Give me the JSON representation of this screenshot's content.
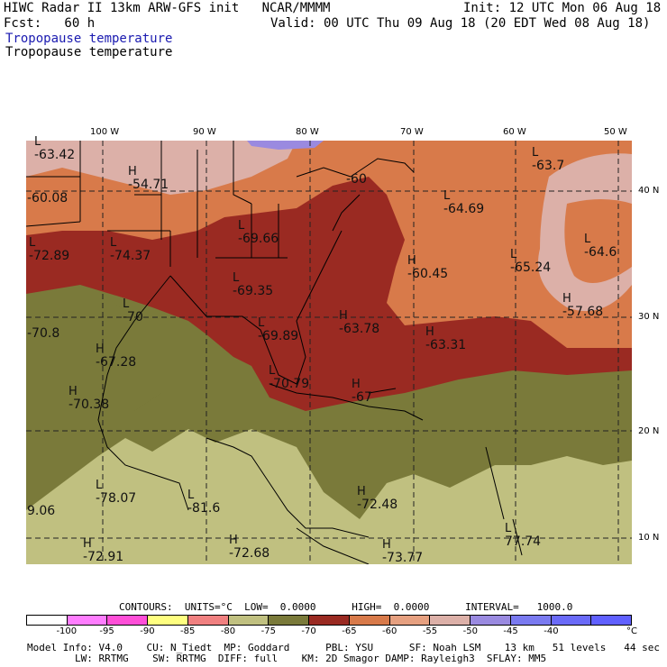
{
  "header": {
    "line1_left": "HIWC Radar II 13km ARW-GFS init   NCAR/MMMM",
    "line1_right": "Init: 12 UTC Mon 06 Aug 18",
    "line2_left": "Fcst:   60 h",
    "line2_right": "Valid: 00 UTC Thu 09 Aug 18 (20 EDT Wed 08 Aug 18)",
    "field_blue": "Tropopause temperature",
    "field_black": "Tropopause temperature"
  },
  "axes": {
    "lon_labels": [
      "100 W",
      "90 W",
      "80 W",
      "70 W",
      "60 W",
      "50 W"
    ],
    "lat_labels": [
      "40 N",
      "30 N",
      "20 N",
      "10 N"
    ]
  },
  "markers": [
    {
      "type": "L",
      "value": "-63.42"
    },
    {
      "type": "H",
      "value": "-54.71"
    },
    {
      "type": "",
      "value": "-60.08"
    },
    {
      "type": "L",
      "value": "-72.89"
    },
    {
      "type": "L",
      "value": "-74.37"
    },
    {
      "type": "L",
      "value": "-69.66"
    },
    {
      "type": "L",
      "value": "-69.35"
    },
    {
      "type": "L",
      "value": "-70"
    },
    {
      "type": "",
      "value": "-70.8"
    },
    {
      "type": "H",
      "value": "-67.28"
    },
    {
      "type": "H",
      "value": "-70.38"
    },
    {
      "type": "L",
      "value": "-69.89"
    },
    {
      "type": "H",
      "value": "-63.78"
    },
    {
      "type": "H",
      "value": "-60.45"
    },
    {
      "type": "L",
      "value": "-65.24"
    },
    {
      "type": "L",
      "value": "-63.7"
    },
    {
      "type": "L",
      "value": "-64.69"
    },
    {
      "type": "L",
      "value": "-64.6"
    },
    {
      "type": "H",
      "value": "-57.68"
    },
    {
      "type": "H",
      "value": "-63.31"
    },
    {
      "type": "L",
      "value": "-70.79"
    },
    {
      "type": "H",
      "value": "-67"
    },
    {
      "type": "",
      "value": "-60"
    },
    {
      "type": "L",
      "value": "-78.07"
    },
    {
      "type": "",
      "value": "9.06"
    },
    {
      "type": "L",
      "value": "-81.6"
    },
    {
      "type": "H",
      "value": "-72.48"
    },
    {
      "type": "H",
      "value": "-72.91"
    },
    {
      "type": "H",
      "value": "-72.68"
    },
    {
      "type": "H",
      "value": "-73.77"
    },
    {
      "type": "L",
      "value": "77.74"
    }
  ],
  "legend": {
    "contours_line": "CONTOURS:  UNITS=°C  LOW=  0.0000      HIGH=  0.0000      INTERVAL=   1000.0",
    "colors": [
      "#ffffff",
      "#ff7dff",
      "#ff4fd8",
      "#ffff80",
      "#f08080",
      "#c0c080",
      "#7a7a3a",
      "#9a2a22",
      "#d87a4a",
      "#e6a080",
      "#dcb0a8",
      "#9a8ae0",
      "#7a7af0",
      "#6a6af8",
      "#6060ff"
    ],
    "ticks": [
      "-100",
      "-95",
      "-90",
      "-85",
      "-80",
      "-75",
      "-70",
      "-65",
      "-60",
      "-55",
      "-50",
      "-45",
      "-40"
    ],
    "unit": "°C"
  },
  "footer": {
    "line1": "Model Info: V4.0    CU: N_Tiedt  MP: Goddard      PBL: YSU      SF: Noah LSM    13 km   51 levels   44 sec",
    "line2": "        LW: RRTMG    SW: RRTMG  DIFF: full    KM: 2D Smagor DAMP: Rayleigh3  SFLAY: MM5"
  }
}
